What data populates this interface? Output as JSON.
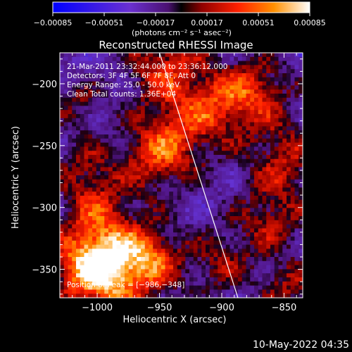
{
  "chart_data": {
    "type": "heatmap",
    "title": "Reconstructed RHESSI Image",
    "xlabel": "Heliocentric X (arcsec)",
    "ylabel": "Heliocentric Y (arcsec)",
    "xlim": [
      -1030,
      -835
    ],
    "ylim": [
      -373,
      -175
    ],
    "x_ticks": [
      -1000,
      -950,
      -900,
      -850
    ],
    "x_tick_labels": [
      "−1000",
      "−950",
      "−900",
      "−850"
    ],
    "y_ticks": [
      -200,
      -250,
      -300,
      -350
    ],
    "y_tick_labels": [
      "−200",
      "−250",
      "−300",
      "−350"
    ],
    "colorbar": {
      "label": "(photons cm⁻² s⁻¹ asec⁻²)",
      "range": [
        -0.00085,
        0.00085
      ],
      "tick_labels": [
        "−0.00085",
        "−0.00051",
        "−0.00017",
        "0.00017",
        "0.00051",
        "0.00085"
      ],
      "tick_values": [
        -0.00085,
        -0.00051,
        -0.00017,
        0.00017,
        0.00051,
        0.00085
      ]
    },
    "annotations": [
      "21-Mar-2011 23:32:44.000 to 23:36:12.000",
      "Detectors: 3F 4F 5F 6F 7F 8F, Att 0",
      "Energy Range: 25.0 - 50.0 keV",
      "Clean     Total counts: 1.36E+04"
    ],
    "peak_label": "Position of Peak = [−986,−348]",
    "peak_position": [
      -986,
      -348
    ],
    "limb_line": [
      [
        -950,
        -175
      ],
      [
        -887,
        -373
      ]
    ],
    "bright_sources": [
      {
        "x": -986,
        "y": -348,
        "r": 28,
        "v": 0.00085
      },
      {
        "x": -1005,
        "y": -345,
        "r": 22,
        "v": 0.0006
      },
      {
        "x": -945,
        "y": -185,
        "r": 22,
        "v": 0.0006
      },
      {
        "x": -935,
        "y": -240,
        "r": 24,
        "v": 0.0005
      },
      {
        "x": -955,
        "y": -262,
        "r": 20,
        "v": 0.00045
      },
      {
        "x": -900,
        "y": -215,
        "r": 20,
        "v": 0.0005
      },
      {
        "x": -870,
        "y": -205,
        "r": 20,
        "v": 0.0005
      },
      {
        "x": -850,
        "y": -260,
        "r": 22,
        "v": 0.0005
      },
      {
        "x": -860,
        "y": -310,
        "r": 20,
        "v": 0.00045
      },
      {
        "x": -900,
        "y": -345,
        "r": 20,
        "v": 0.0004
      },
      {
        "x": -955,
        "y": -340,
        "r": 16,
        "v": 0.0004
      },
      {
        "x": -1010,
        "y": -270,
        "r": 20,
        "v": 0.0004
      },
      {
        "x": -1000,
        "y": -300,
        "r": 16,
        "v": 0.0003
      },
      {
        "x": -1015,
        "y": -215,
        "r": 14,
        "v": 0.00035
      },
      {
        "x": -845,
        "y": -365,
        "r": 16,
        "v": 0.00045
      }
    ]
  },
  "footer": {
    "timestamp": "10-May-2022 04:35"
  }
}
